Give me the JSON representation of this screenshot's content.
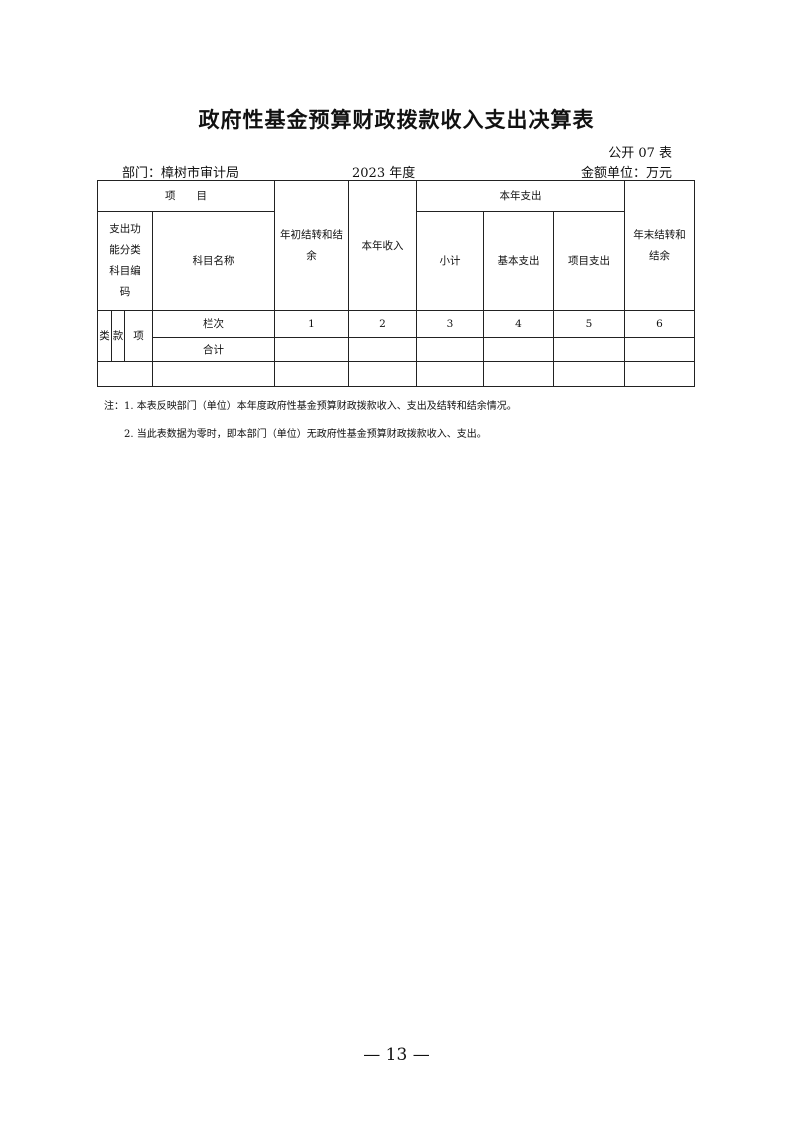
{
  "title": "政府性基金预算财政拨款收入支出决算表",
  "table_code": "公开 07 表",
  "department": "部门：樟树市审计局",
  "year": "2023 年度",
  "unit": "金额单位：万元",
  "table": {
    "header_item": "项　　目",
    "header_func_code": "支出功能分类科目编码",
    "header_subject_name": "科目名称",
    "header_begin_balance": "年初结转和结余",
    "header_income": "本年收入",
    "header_expense": "本年支出",
    "header_subtotal": "小计",
    "header_basic": "基本支出",
    "header_project": "项目支出",
    "header_end_balance": "年末结转和结余",
    "label_lei": "类",
    "label_kuan": "款",
    "label_xiang": "项",
    "column_index_label": "栏次",
    "column_numbers": [
      "1",
      "2",
      "3",
      "4",
      "5",
      "6"
    ],
    "total_label": "合计"
  },
  "notes": [
    "注：1. 本表反映部门（单位）本年度政府性基金预算财政拨款收入、支出及结转和结余情况。",
    "2. 当此表数据为零时，即本部门（单位）无政府性基金预算财政拨款收入、支出。"
  ],
  "page_number": "— 13 —"
}
